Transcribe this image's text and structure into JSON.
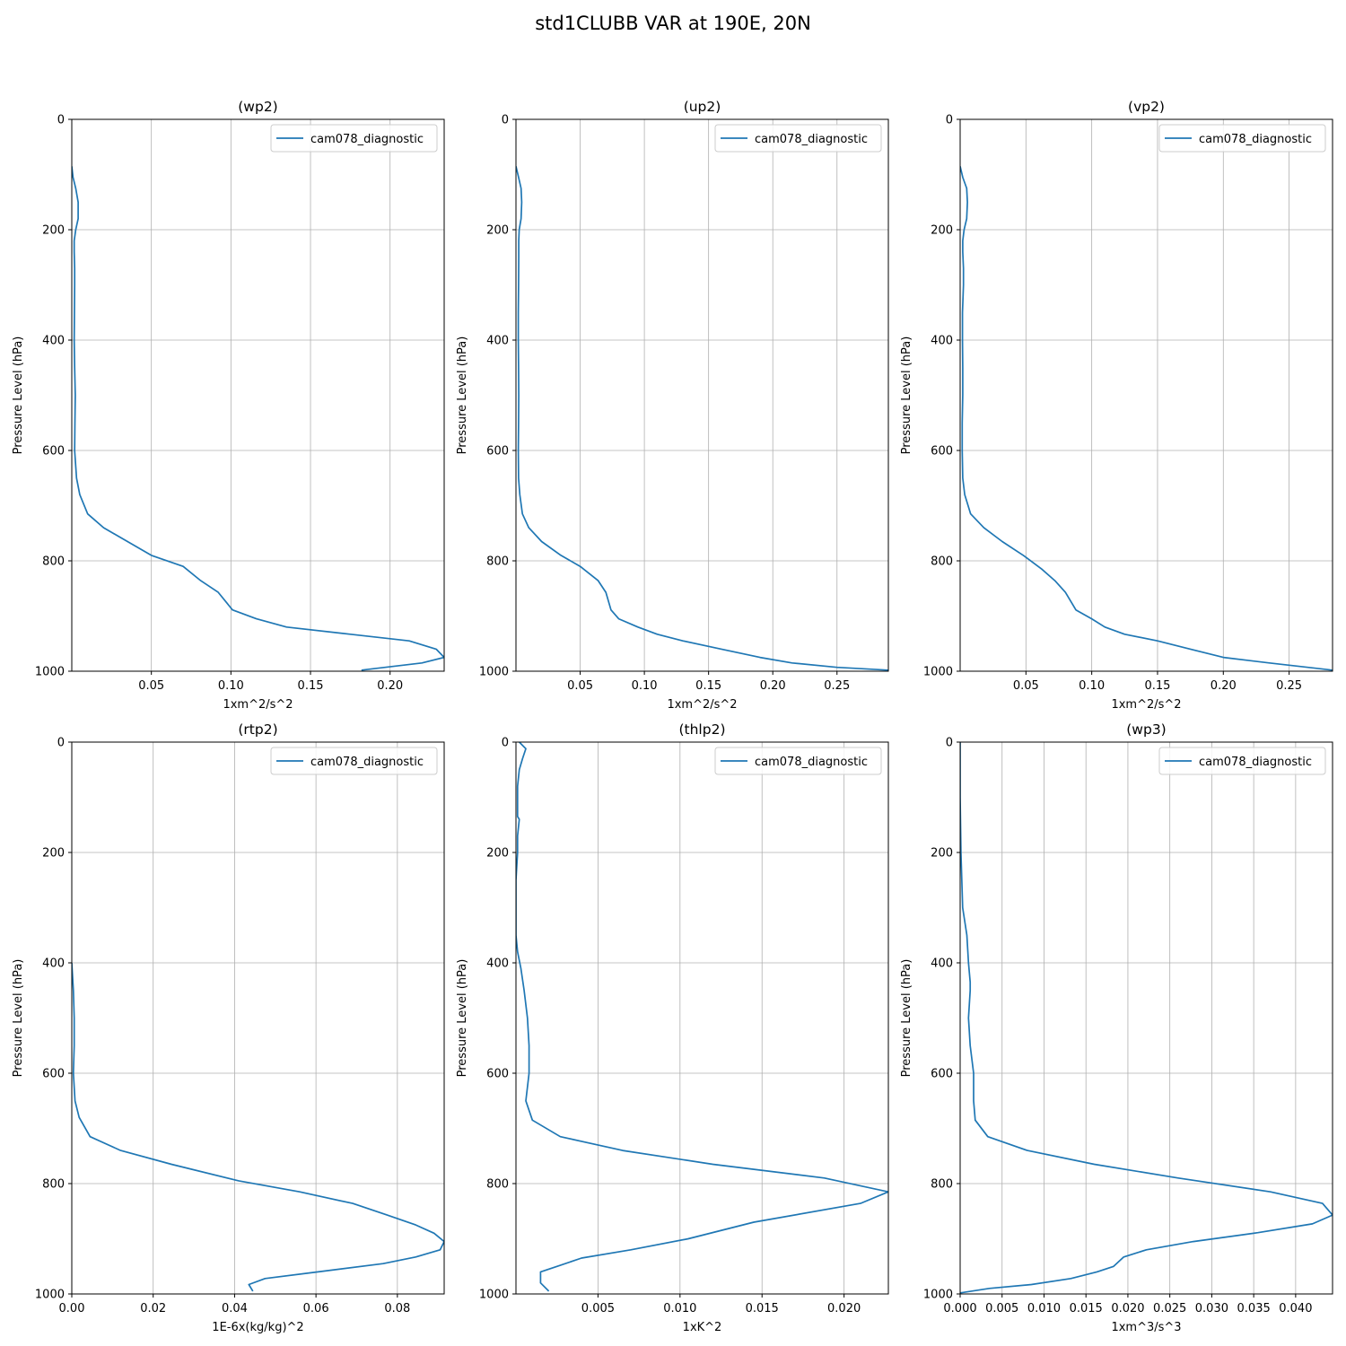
{
  "figure": {
    "title": "std1CLUBB VAR at 190E, 20N",
    "line_color": "#1f77b4",
    "grid_color": "#b0b0b0"
  },
  "chart_data": [
    {
      "type": "line",
      "title": "(wp2)",
      "xlabel": "1xm^2/s^2",
      "ylabel": "Pressure Level (hPa)",
      "xlim": [
        0.0,
        0.234
      ],
      "xticks": [
        0.05,
        0.1,
        0.15,
        0.2
      ],
      "xtick_labels": [
        "0.05",
        "0.10",
        "0.15",
        "0.20"
      ],
      "ylim": [
        1000,
        0
      ],
      "yticks": [
        0,
        200,
        400,
        600,
        800,
        1000
      ],
      "ytick_labels": [
        "0",
        "200",
        "400",
        "600",
        "800",
        "1000"
      ],
      "grid": true,
      "legend_position": "top-right",
      "series": [
        {
          "name": "cam078_diagnostic",
          "x": [
            0.0,
            0.0008,
            0.0025,
            0.004,
            0.004,
            0.0025,
            0.0015,
            0.0015,
            0.0018,
            0.0018,
            0.0015,
            0.0018,
            0.0022,
            0.002,
            0.0018,
            0.003,
            0.005,
            0.01,
            0.02,
            0.035,
            0.05,
            0.07,
            0.081,
            0.092,
            0.101,
            0.116,
            0.135,
            0.175,
            0.212,
            0.229,
            0.234,
            0.22,
            0.182
          ],
          "y": [
            85,
            105,
            125,
            150,
            180,
            200,
            220,
            240,
            270,
            300,
            400,
            450,
            500,
            550,
            600,
            650,
            680,
            715,
            740,
            765,
            790,
            810,
            836,
            857,
            889,
            905,
            920,
            933,
            945,
            960,
            975,
            985,
            998
          ]
        }
      ]
    },
    {
      "type": "line",
      "title": "(up2)",
      "xlabel": "1xm^2/s^2",
      "ylabel": "Pressure Level (hPa)",
      "xlim": [
        0.0,
        0.29
      ],
      "xticks": [
        0.05,
        0.1,
        0.15,
        0.2,
        0.25
      ],
      "xtick_labels": [
        "0.05",
        "0.10",
        "0.15",
        "0.20",
        "0.25"
      ],
      "ylim": [
        1000,
        0
      ],
      "yticks": [
        0,
        200,
        400,
        600,
        800,
        1000
      ],
      "ytick_labels": [
        "0",
        "200",
        "400",
        "600",
        "800",
        "1000"
      ],
      "grid": true,
      "legend_position": "top-right",
      "series": [
        {
          "name": "cam078_diagnostic",
          "x": [
            0.0,
            0.002,
            0.004,
            0.0045,
            0.004,
            0.0025,
            0.0022,
            0.0022,
            0.002,
            0.0018,
            0.0018,
            0.002,
            0.0022,
            0.002,
            0.0018,
            0.002,
            0.003,
            0.005,
            0.01,
            0.02,
            0.035,
            0.05,
            0.064,
            0.07,
            0.074,
            0.08,
            0.095,
            0.11,
            0.13,
            0.16,
            0.19,
            0.215,
            0.25,
            0.29
          ],
          "y": [
            85,
            105,
            125,
            150,
            180,
            200,
            220,
            250,
            300,
            350,
            400,
            450,
            500,
            550,
            600,
            650,
            680,
            715,
            740,
            765,
            790,
            810,
            836,
            857,
            889,
            905,
            920,
            933,
            945,
            960,
            975,
            985,
            993,
            998
          ]
        }
      ]
    },
    {
      "type": "line",
      "title": "(vp2)",
      "xlabel": "1xm^2/s^2",
      "ylabel": "Pressure Level (hPa)",
      "xlim": [
        0.0,
        0.283
      ],
      "xticks": [
        0.05,
        0.1,
        0.15,
        0.2,
        0.25
      ],
      "xtick_labels": [
        "0.05",
        "0.10",
        "0.15",
        "0.20",
        "0.25"
      ],
      "ylim": [
        1000,
        0
      ],
      "yticks": [
        0,
        200,
        400,
        600,
        800,
        1000
      ],
      "ytick_labels": [
        "0",
        "200",
        "400",
        "600",
        "800",
        "1000"
      ],
      "grid": true,
      "legend_position": "top-right",
      "series": [
        {
          "name": "cam078_diagnostic",
          "x": [
            0.0,
            0.002,
            0.005,
            0.0055,
            0.005,
            0.003,
            0.002,
            0.002,
            0.0025,
            0.0025,
            0.0018,
            0.0018,
            0.002,
            0.002,
            0.0016,
            0.0016,
            0.002,
            0.0035,
            0.008,
            0.018,
            0.032,
            0.048,
            0.062,
            0.072,
            0.08,
            0.088,
            0.1,
            0.11,
            0.125,
            0.15,
            0.175,
            0.2,
            0.235,
            0.283
          ],
          "y": [
            85,
            105,
            125,
            150,
            180,
            200,
            220,
            240,
            270,
            300,
            350,
            400,
            450,
            500,
            550,
            600,
            650,
            680,
            715,
            740,
            765,
            790,
            815,
            836,
            857,
            889,
            905,
            920,
            933,
            945,
            960,
            975,
            985,
            998
          ]
        }
      ]
    },
    {
      "type": "line",
      "title": "(rtp2)",
      "xlabel": "1E-6x(kg/kg)^2",
      "ylabel": "Pressure Level (hPa)",
      "xlim": [
        0.0,
        0.0915
      ],
      "xticks": [
        0.0,
        0.02,
        0.04,
        0.06,
        0.08
      ],
      "xtick_labels": [
        "0.00",
        "0.02",
        "0.04",
        "0.06",
        "0.08"
      ],
      "ylim": [
        1000,
        0
      ],
      "yticks": [
        0,
        200,
        400,
        600,
        800,
        1000
      ],
      "ytick_labels": [
        "0",
        "200",
        "400",
        "600",
        "800",
        "1000"
      ],
      "grid": true,
      "legend_position": "top-right",
      "series": [
        {
          "name": "cam078_diagnostic",
          "x": [
            0.0,
            0.0004,
            0.0006,
            0.0006,
            0.0004,
            0.0008,
            0.0018,
            0.0045,
            0.012,
            0.0245,
            0.041,
            0.056,
            0.069,
            0.0775,
            0.0845,
            0.089,
            0.0915,
            0.0905,
            0.0845,
            0.0765,
            0.0605,
            0.0475,
            0.0435,
            0.0445
          ],
          "y": [
            400,
            450,
            500,
            550,
            600,
            650,
            680,
            715,
            740,
            765,
            795,
            815,
            836,
            857,
            875,
            890,
            905,
            920,
            933,
            945,
            960,
            972,
            983,
            995
          ]
        }
      ]
    },
    {
      "type": "line",
      "title": "(thlp2)",
      "xlabel": "1xK^2",
      "ylabel": "Pressure Level (hPa)",
      "xlim": [
        0.0,
        0.0227
      ],
      "xticks": [
        0.005,
        0.01,
        0.015,
        0.02
      ],
      "xtick_labels": [
        "0.005",
        "0.010",
        "0.015",
        "0.020"
      ],
      "ylim": [
        1000,
        0
      ],
      "yticks": [
        0,
        200,
        400,
        600,
        800,
        1000
      ],
      "ytick_labels": [
        "0",
        "200",
        "400",
        "600",
        "800",
        "1000"
      ],
      "grid": true,
      "legend_position": "top-right",
      "series": [
        {
          "name": "cam078_diagnostic",
          "x": [
            0.0002,
            0.0006,
            0.0004,
            0.0002,
            0.0001,
            0.0001,
            0.0001,
            0.0002,
            0.0001,
            0.0001,
            0.0,
            0.0,
            0.0,
            0.0001,
            0.0003,
            0.0005,
            0.0007,
            0.0008,
            0.0008,
            0.0006,
            0.001,
            0.0027,
            0.0065,
            0.012,
            0.0188,
            0.0227,
            0.021,
            0.0145,
            0.0105,
            0.007,
            0.004,
            0.0025,
            0.0015,
            0.0015,
            0.002
          ],
          "y": [
            0,
            12,
            30,
            50,
            80,
            110,
            135,
            140,
            170,
            200,
            250,
            300,
            350,
            380,
            410,
            450,
            500,
            550,
            600,
            650,
            685,
            715,
            740,
            765,
            790,
            815,
            836,
            870,
            900,
            920,
            935,
            950,
            960,
            980,
            995
          ]
        }
      ]
    },
    {
      "type": "line",
      "title": "(wp3)",
      "xlabel": "1xm^3/s^3",
      "ylabel": "Pressure Level (hPa)",
      "xlim": [
        0.0,
        0.0444
      ],
      "xticks": [
        0.0,
        0.005,
        0.01,
        0.015,
        0.02,
        0.025,
        0.03,
        0.035,
        0.04
      ],
      "xtick_labels": [
        "0.000",
        "0.005",
        "0.010",
        "0.015",
        "0.020",
        "0.025",
        "0.030",
        "0.035",
        "0.040"
      ],
      "ylim": [
        1000,
        0
      ],
      "yticks": [
        0,
        200,
        400,
        600,
        800,
        1000
      ],
      "ytick_labels": [
        "0",
        "200",
        "400",
        "600",
        "800",
        "1000"
      ],
      "grid": true,
      "legend_position": "top-right",
      "series": [
        {
          "name": "cam078_diagnostic",
          "x": [
            0.0,
            0.0,
            0.0001,
            0.0003,
            0.0008,
            0.001,
            0.0012,
            0.0012,
            0.001,
            0.0012,
            0.0016,
            0.0016,
            0.0018,
            0.0033,
            0.008,
            0.016,
            0.026,
            0.037,
            0.0432,
            0.0444,
            0.042,
            0.0355,
            0.0278,
            0.0222,
            0.0195,
            0.0183,
            0.0163,
            0.0132,
            0.0085,
            0.0035,
            0.0
          ],
          "y": [
            0,
            100,
            200,
            300,
            350,
            400,
            435,
            450,
            500,
            550,
            600,
            650,
            685,
            715,
            740,
            765,
            790,
            815,
            836,
            857,
            873,
            889,
            905,
            920,
            933,
            950,
            960,
            972,
            983,
            990,
            998
          ]
        }
      ]
    }
  ]
}
